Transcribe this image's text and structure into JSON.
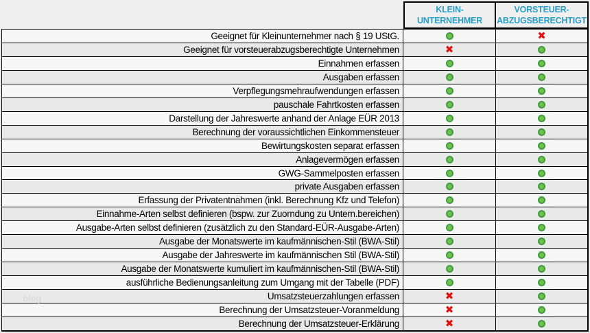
{
  "header": {
    "col1": {
      "line1": "KLEIN-",
      "line2": "UNTERNEHMER"
    },
    "col2": {
      "line1": "VORSTEUER-",
      "line2": "ABZUGSBERECHTIGT"
    }
  },
  "watermark": "blog",
  "icons": {
    "yes": "green-dot-icon",
    "no": "red-x-icon",
    "no_glyph": "✖"
  },
  "colors": {
    "header_text": "#2B9EC7",
    "yes_fill": "#6CC24A",
    "yes_border": "#3F9B3F",
    "no_red": "#E01212",
    "row_odd": "#F7F7F7",
    "row_even": "#E9E9E9",
    "page_background": "#EFEFEF"
  },
  "rows": [
    {
      "label": "Geeignet für Kleinunternehmer nach § 19 UStG.",
      "kleinunternehmer": true,
      "vorsteuerabzugsberechtigt": false
    },
    {
      "label": "Geeignet für vorsteuerabzugsberechtigte Unternehmen",
      "kleinunternehmer": false,
      "vorsteuerabzugsberechtigt": true
    },
    {
      "label": "Einnahmen erfassen",
      "kleinunternehmer": true,
      "vorsteuerabzugsberechtigt": true
    },
    {
      "label": "Ausgaben erfassen",
      "kleinunternehmer": true,
      "vorsteuerabzugsberechtigt": true
    },
    {
      "label": "Verpflegungsmehraufwendungen erfassen",
      "kleinunternehmer": true,
      "vorsteuerabzugsberechtigt": true
    },
    {
      "label": "pauschale Fahrtkosten erfassen",
      "kleinunternehmer": true,
      "vorsteuerabzugsberechtigt": true
    },
    {
      "label": "Darstellung der Jahreswerte anhand der Anlage EÜR 2013",
      "kleinunternehmer": true,
      "vorsteuerabzugsberechtigt": true
    },
    {
      "label": "Berechnung der voraussichtlichen Einkommensteuer",
      "kleinunternehmer": true,
      "vorsteuerabzugsberechtigt": true
    },
    {
      "label": "Bewirtungskosten separat erfassen",
      "kleinunternehmer": true,
      "vorsteuerabzugsberechtigt": true
    },
    {
      "label": "Anlagevermögen erfassen",
      "kleinunternehmer": true,
      "vorsteuerabzugsberechtigt": true
    },
    {
      "label": "GWG-Sammelposten erfassen",
      "kleinunternehmer": true,
      "vorsteuerabzugsberechtigt": true
    },
    {
      "label": "private Ausgaben erfassen",
      "kleinunternehmer": true,
      "vorsteuerabzugsberechtigt": true
    },
    {
      "label": "Erfassung der Privatentnahmen (inkl. Berechnung Kfz und Telefon)",
      "kleinunternehmer": true,
      "vorsteuerabzugsberechtigt": true
    },
    {
      "label": "Einnahme-Arten selbst definieren (bspw. zur Zuorndung zu Untern.bereichen)",
      "kleinunternehmer": true,
      "vorsteuerabzugsberechtigt": true
    },
    {
      "label": "Ausgabe-Arten selbst definieren (zusätzlich zu den Standard-EÜR-Ausgabe-Arten)",
      "kleinunternehmer": true,
      "vorsteuerabzugsberechtigt": true
    },
    {
      "label": "Ausgabe der Monatswerte im kaufmännischen-Stil (BWA-Stil)",
      "kleinunternehmer": true,
      "vorsteuerabzugsberechtigt": true
    },
    {
      "label": "Ausgabe der Jahreswerte im kaufmännischen Stil (BWA-Stil)",
      "kleinunternehmer": true,
      "vorsteuerabzugsberechtigt": true
    },
    {
      "label": "Ausgabe der Monatswerte kumuliert im kaufmännischen-Stil (BWA-Stil)",
      "kleinunternehmer": true,
      "vorsteuerabzugsberechtigt": true
    },
    {
      "label": "ausführliche Bedienungsanleitung zum Umgang mit der Tabelle (PDF)",
      "kleinunternehmer": true,
      "vorsteuerabzugsberechtigt": true
    },
    {
      "label": "Umsatzsteuerzahlungen erfassen",
      "kleinunternehmer": false,
      "vorsteuerabzugsberechtigt": true
    },
    {
      "label": "Berechnung der Umsatzsteuer-Voranmeldung",
      "kleinunternehmer": false,
      "vorsteuerabzugsberechtigt": true
    },
    {
      "label": "Berechnung der Umsatzsteuer-Erklärung",
      "kleinunternehmer": false,
      "vorsteuerabzugsberechtigt": true
    }
  ]
}
